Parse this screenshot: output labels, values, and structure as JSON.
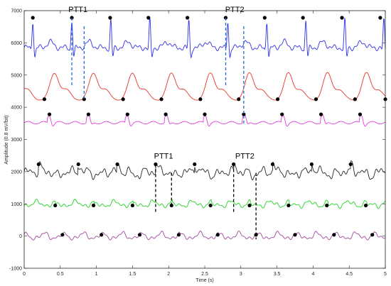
{
  "chart_data": {
    "type": "line",
    "xlabel": "Time (s)",
    "ylabel": "Amplitude (0.8 mV/bit)",
    "xlim": [
      0,
      5
    ],
    "ylim": [
      -1000,
      7000
    ],
    "x_ticks": [
      "0",
      "0.5",
      "1",
      "1.5",
      "2",
      "2.5",
      "3",
      "3.5",
      "4",
      "4.5",
      "5"
    ],
    "y_ticks": [
      "-1000",
      "0",
      "1000",
      "2000",
      "3000",
      "4000",
      "5000",
      "6000",
      "7000"
    ],
    "grid": false,
    "legend": "none",
    "series": [
      {
        "color": "#2f2fe8",
        "baseline": 5850,
        "period_s": 0.54,
        "first_peak_s": 0.12,
        "peak_value": 6780,
        "markers_s": [
          0.12,
          0.66,
          1.19,
          1.72,
          2.26,
          2.79,
          3.33,
          3.86,
          4.4,
          4.93
        ],
        "marker_value": 6780
      },
      {
        "color": "#e8342a",
        "baseline": 4350,
        "period_s": 0.54,
        "peak_offset_s": 0.28,
        "peak_value": 5050,
        "markers_s": [
          0.28,
          0.83,
          1.37,
          1.9,
          2.44,
          2.97,
          3.51,
          4.04,
          4.58,
          5.0
        ],
        "marker_value": 4250
      },
      {
        "color": "#e23cdc",
        "baseline": 3520,
        "period_s": 0.54,
        "peak_value": 3780,
        "markers_s": [
          0.35,
          0.89,
          1.43,
          1.96,
          2.5,
          3.04,
          3.57,
          4.11,
          4.65
        ],
        "marker_value": 3780
      },
      {
        "color": "#262626",
        "baseline": 2000,
        "period_s": 0.54,
        "peak_value": 2230,
        "markers_s": [
          0.2,
          0.75,
          1.29,
          1.82,
          2.36,
          2.9,
          3.44,
          3.98,
          4.52
        ],
        "marker_value": 2230
      },
      {
        "color": "#21d121",
        "baseline": 1000,
        "period_s": 0.54,
        "peak_value": 1080,
        "markers_s": [
          0.43,
          0.96,
          1.5,
          2.04,
          2.58,
          3.12,
          3.66,
          4.19,
          4.73
        ],
        "marker_value": 950
      },
      {
        "color": "#a0489c",
        "baseline": 0,
        "period_s": 0.54,
        "peak_value": 90,
        "markers_s": [
          0.53,
          1.07,
          1.6,
          2.14,
          2.68,
          3.21,
          3.75,
          4.29,
          4.82
        ],
        "marker_value": 40
      }
    ],
    "annotations": [
      {
        "label": "PTT1",
        "series": "top",
        "x_start": 0.66,
        "x_end": 0.83,
        "y_from": 6780,
        "y_to": 4250,
        "color": "#1f6fd1"
      },
      {
        "label": "PTT2",
        "series": "top",
        "x_start": 2.79,
        "x_end": 3.04,
        "y_from": 6780,
        "y_to": 3500,
        "color": "#1f6fd1"
      },
      {
        "label": "PTT1",
        "series": "bottom",
        "x_start": 1.82,
        "x_end": 2.04,
        "y_from": 2230,
        "y_to": 950,
        "color": "#000000"
      },
      {
        "label": "PTT2",
        "series": "bottom",
        "x_start": 2.9,
        "x_end": 3.21,
        "y_from": 2230,
        "y_to": -100,
        "color": "#000000"
      }
    ]
  }
}
